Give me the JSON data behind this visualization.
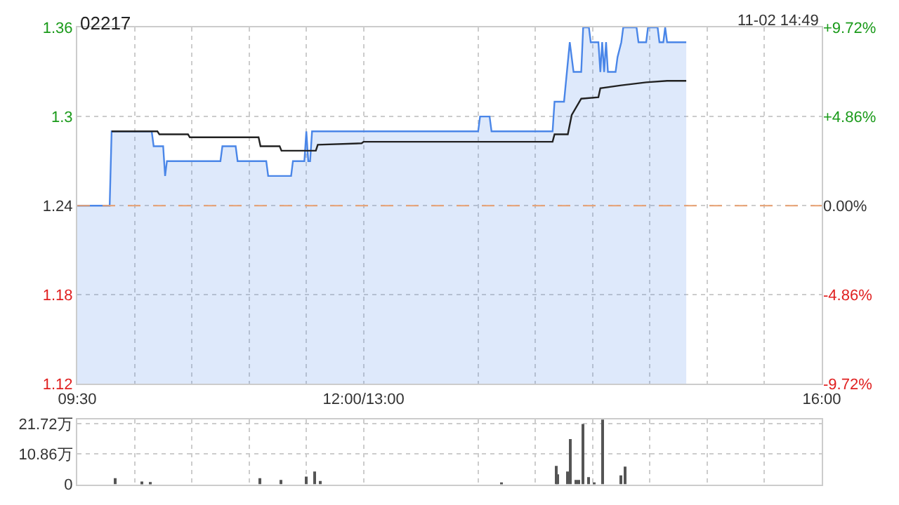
{
  "chart_data": [
    {
      "type": "line",
      "title": "02217",
      "annotations": [
        "11-02 14:49"
      ],
      "series": [
        {
          "type": "area",
          "color": "#4a86e8",
          "x": [
            9.5,
            9.783,
            9.8,
            10.15,
            10.167,
            10.25,
            10.267,
            10.283,
            10.75,
            10.767,
            10.883,
            10.9,
            11.15,
            11.167,
            11.367,
            11.383,
            11.483,
            11.5,
            11.517,
            11.533,
            11.55,
            12.0,
            13.0,
            13.017,
            13.1,
            13.117,
            13.65,
            13.667,
            13.75,
            13.8,
            13.833,
            13.9,
            13.917,
            13.967,
            13.983,
            14.05,
            14.067,
            14.083,
            14.1,
            14.117,
            14.133,
            14.15,
            14.2,
            14.217,
            14.25,
            14.267,
            14.383,
            14.4,
            14.467,
            14.483,
            14.567,
            14.583,
            14.617,
            14.633,
            14.65,
            14.817
          ],
          "values": [
            1.24,
            1.24,
            1.29,
            1.29,
            1.28,
            1.28,
            1.26,
            1.27,
            1.27,
            1.28,
            1.28,
            1.27,
            1.27,
            1.26,
            1.26,
            1.27,
            1.27,
            1.29,
            1.27,
            1.27,
            1.29,
            1.29,
            1.29,
            1.3,
            1.3,
            1.29,
            1.29,
            1.31,
            1.31,
            1.35,
            1.33,
            1.33,
            1.36,
            1.36,
            1.35,
            1.35,
            1.33,
            1.35,
            1.33,
            1.35,
            1.33,
            1.33,
            1.33,
            1.34,
            1.35,
            1.36,
            1.36,
            1.35,
            1.35,
            1.36,
            1.36,
            1.35,
            1.35,
            1.36,
            1.35,
            1.35
          ]
        },
        {
          "type": "line",
          "color": "#222222",
          "x": [
            9.8,
            10.2,
            10.217,
            10.467,
            10.483,
            11.083,
            11.1,
            11.267,
            11.283,
            11.583,
            11.6,
            11.983,
            12.0,
            13.0,
            13.65,
            13.667,
            13.783,
            13.817,
            13.9,
            14.05,
            14.067,
            14.25,
            14.467,
            14.65,
            14.817
          ],
          "values": [
            1.29,
            1.29,
            1.288,
            1.288,
            1.286,
            1.286,
            1.28,
            1.28,
            1.277,
            1.277,
            1.281,
            1.282,
            1.283,
            1.283,
            1.283,
            1.288,
            1.288,
            1.301,
            1.312,
            1.313,
            1.319,
            1.321,
            1.323,
            1.324,
            1.324
          ]
        }
      ],
      "xlim": [
        9.5,
        16
      ],
      "xticks": [
        {
          "value": 9.5,
          "label": "09:30"
        },
        {
          "value": 10,
          "label": null
        },
        {
          "value": 10.5,
          "label": null
        },
        {
          "value": 11,
          "label": null
        },
        {
          "value": 11.5,
          "label": null
        },
        {
          "value": 12,
          "label": "12:00/13:00"
        },
        {
          "value": 13,
          "label": null
        },
        {
          "value": 13.5,
          "label": null
        },
        {
          "value": 14,
          "label": null
        },
        {
          "value": 14.5,
          "label": null
        },
        {
          "value": 15,
          "label": null
        },
        {
          "value": 15.5,
          "label": null
        },
        {
          "value": 16,
          "label": "16:00"
        }
      ],
      "ylim": [
        1.12,
        1.36
      ],
      "yticks": [
        1.12,
        1.18,
        1.24,
        1.3,
        1.36
      ],
      "y2lim": [
        -9.72,
        9.72
      ],
      "y2ticks": [
        {
          "value": -9.72,
          "label": "-9.72%"
        },
        {
          "value": -4.86,
          "label": "-4.86%"
        },
        {
          "value": 0,
          "label": "0.00%"
        },
        {
          "value": 4.86,
          "label": "+4.86%"
        },
        {
          "value": 9.72,
          "label": "+9.72%"
        }
      ],
      "ref_lines": [
        {
          "axis": "y",
          "value": 1.24,
          "color": "#e8a070",
          "line_style": "dashed"
        }
      ],
      "grid": true,
      "line_style": "solid",
      "marker": "none"
    },
    {
      "type": "bar",
      "color": "#555555",
      "x": [
        9.833,
        10.067,
        10.133,
        11.1,
        11.283,
        11.5,
        11.567,
        11.617,
        13.2,
        13.683,
        13.7,
        13.783,
        13.8,
        13.85,
        13.883,
        13.917,
        13.967,
        14.017,
        14.083,
        14.25,
        14.283
      ],
      "values": [
        2.2,
        1.0,
        0.8,
        2.2,
        1.6,
        2.8,
        4.6,
        1.2,
        0.6,
        6.6,
        3.6,
        4.6,
        16.3,
        1.6,
        1.6,
        21.7,
        2.6,
        0.6,
        23.3,
        3.2,
        6.4
      ],
      "xlim": [
        9.5,
        16
      ],
      "xticks": [
        {
          "value": 9.5,
          "label": null
        },
        {
          "value": 10,
          "label": null
        },
        {
          "value": 10.5,
          "label": null
        },
        {
          "value": 11,
          "label": null
        },
        {
          "value": 11.5,
          "label": null
        },
        {
          "value": 12,
          "label": null
        },
        {
          "value": 13,
          "label": null
        },
        {
          "value": 13.5,
          "label": null
        },
        {
          "value": 14,
          "label": null
        },
        {
          "value": 14.5,
          "label": null
        },
        {
          "value": 15,
          "label": null
        },
        {
          "value": 15.5,
          "label": null
        },
        {
          "value": 16,
          "label": null
        }
      ],
      "ylim": [
        0,
        23.4
      ],
      "yticks": [
        {
          "value": 0,
          "label": "0"
        },
        {
          "value": 10.86,
          "label": "10.86万"
        },
        {
          "value": 21.72,
          "label": "21.72万"
        }
      ],
      "tick_labels": "y",
      "grid": true
    }
  ]
}
